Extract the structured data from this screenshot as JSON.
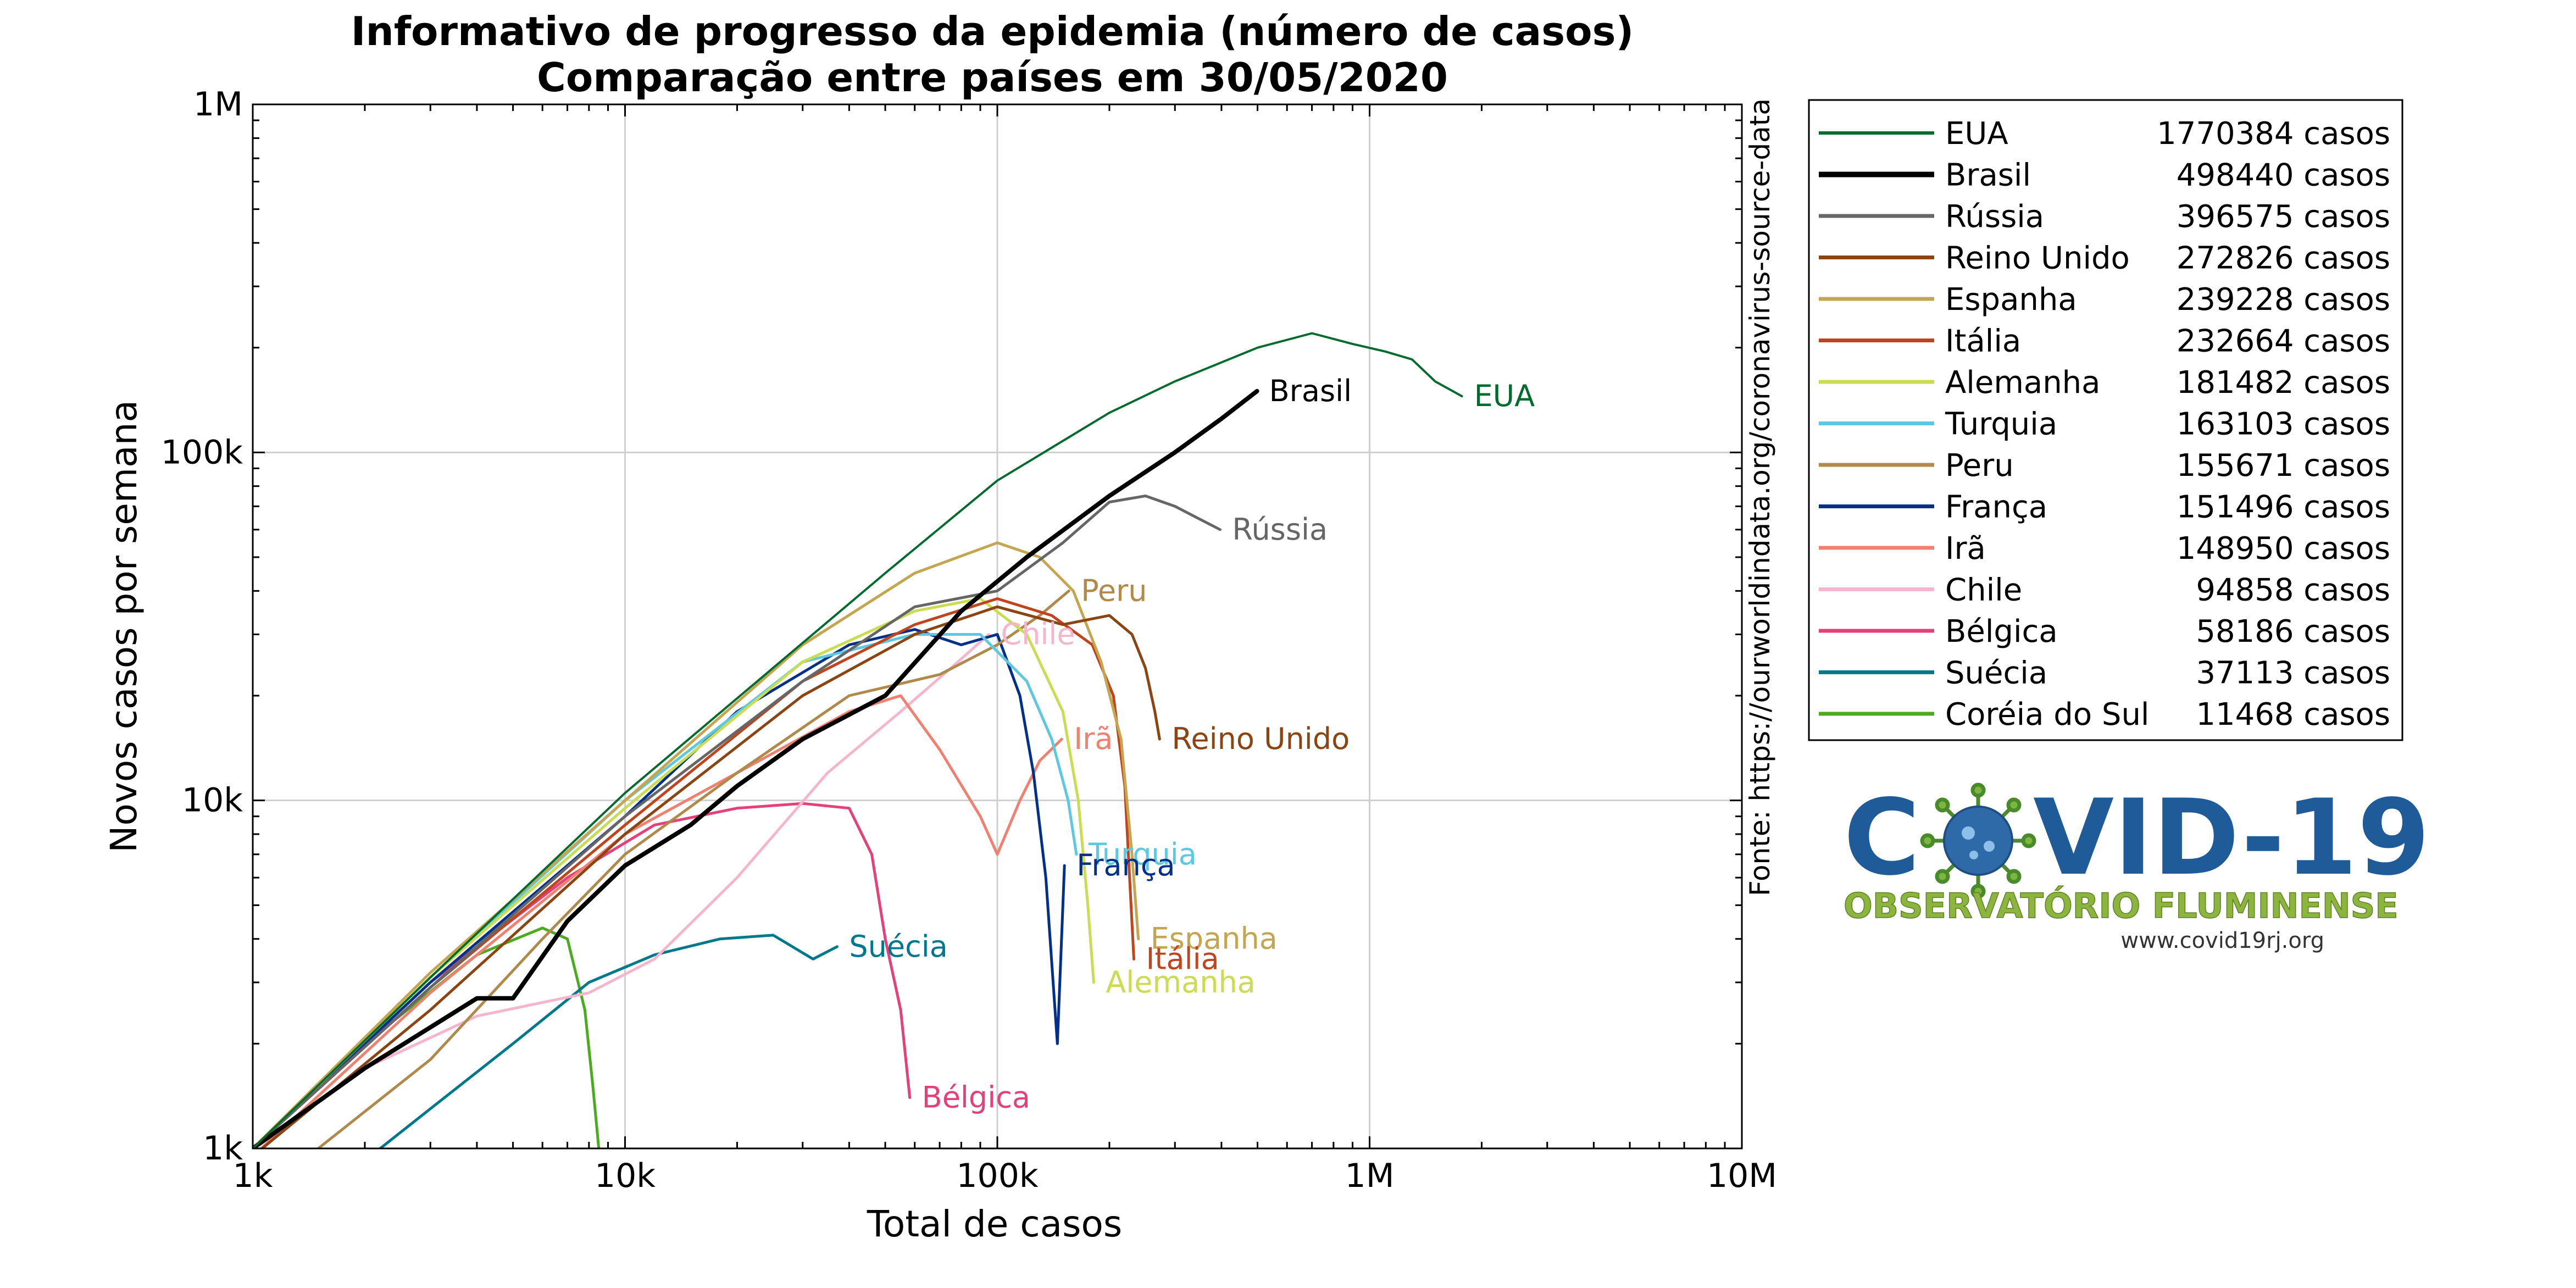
{
  "chart_data": {
    "type": "line",
    "title": "Informativo de progresso da epidemia (número de casos)",
    "subtitle": "Comparação entre países em 30/05/2020",
    "xlabel": "Total de casos",
    "ylabel": "Novos casos por semana",
    "source_note": "Fonte: https://ourworldindata.org/coronavirus-source-data",
    "x_scale": "log",
    "y_scale": "log",
    "xlim": [
      1000,
      10000000
    ],
    "ylim": [
      1000,
      1000000
    ],
    "x_ticks": [
      {
        "value": 1000,
        "label": "1k"
      },
      {
        "value": 10000,
        "label": "10k"
      },
      {
        "value": 100000,
        "label": "100k"
      },
      {
        "value": 1000000,
        "label": "1M"
      },
      {
        "value": 10000000,
        "label": "10M"
      }
    ],
    "y_ticks": [
      {
        "value": 1000,
        "label": "1k"
      },
      {
        "value": 10000,
        "label": "10k"
      },
      {
        "value": 100000,
        "label": "100k"
      },
      {
        "value": 1000000,
        "label": "1M"
      }
    ],
    "grid": true,
    "legend_position": "right",
    "series": [
      {
        "name": "EUA",
        "total": "1770384 casos",
        "color": "#006b2d",
        "width": 4,
        "end_label": "EUA",
        "points": [
          [
            1000,
            1000
          ],
          [
            3000,
            3100
          ],
          [
            10000,
            10500
          ],
          [
            50000,
            45000
          ],
          [
            100000,
            83000
          ],
          [
            200000,
            130000
          ],
          [
            300000,
            160000
          ],
          [
            500000,
            200000
          ],
          [
            700000,
            220000
          ],
          [
            900000,
            205000
          ],
          [
            1100000,
            195000
          ],
          [
            1300000,
            185000
          ],
          [
            1500000,
            160000
          ],
          [
            1770384,
            145000
          ]
        ]
      },
      {
        "name": "Brasil",
        "total": "498440 casos",
        "color": "#000000",
        "width": 8,
        "end_label": "Brasil",
        "points": [
          [
            1000,
            1000
          ],
          [
            2000,
            1700
          ],
          [
            4000,
            2700
          ],
          [
            5000,
            2700
          ],
          [
            7000,
            4500
          ],
          [
            10000,
            6500
          ],
          [
            15000,
            8500
          ],
          [
            20000,
            11000
          ],
          [
            30000,
            15000
          ],
          [
            50000,
            20000
          ],
          [
            80000,
            35000
          ],
          [
            120000,
            50000
          ],
          [
            200000,
            75000
          ],
          [
            300000,
            100000
          ],
          [
            400000,
            125000
          ],
          [
            498440,
            150000
          ]
        ]
      },
      {
        "name": "Rússia",
        "total": "396575 casos",
        "color": "#666666",
        "width": 5,
        "end_label": "Rússia",
        "points": [
          [
            1000,
            1000
          ],
          [
            3000,
            2900
          ],
          [
            10000,
            9000
          ],
          [
            30000,
            22000
          ],
          [
            60000,
            36000
          ],
          [
            100000,
            40000
          ],
          [
            150000,
            55000
          ],
          [
            200000,
            72000
          ],
          [
            250000,
            75000
          ],
          [
            300000,
            70000
          ],
          [
            396575,
            60000
          ]
        ]
      },
      {
        "name": "Reino Unido",
        "total": "272826 casos",
        "color": "#8b4513",
        "width": 5,
        "end_label": "Reino Unido",
        "points": [
          [
            1000,
            950
          ],
          [
            3000,
            2500
          ],
          [
            10000,
            8000
          ],
          [
            30000,
            20000
          ],
          [
            60000,
            30000
          ],
          [
            100000,
            36000
          ],
          [
            150000,
            32000
          ],
          [
            200000,
            34000
          ],
          [
            230000,
            30000
          ],
          [
            250000,
            24000
          ],
          [
            265000,
            18000
          ],
          [
            272826,
            15000
          ]
        ]
      },
      {
        "name": "Espanha",
        "total": "239228 casos",
        "color": "#c4a550",
        "width": 5,
        "end_label": "Espanha",
        "points": [
          [
            1000,
            1000
          ],
          [
            3000,
            3200
          ],
          [
            10000,
            10000
          ],
          [
            30000,
            28000
          ],
          [
            60000,
            45000
          ],
          [
            100000,
            55000
          ],
          [
            130000,
            50000
          ],
          [
            160000,
            40000
          ],
          [
            190000,
            25000
          ],
          [
            215000,
            15000
          ],
          [
            230000,
            7000
          ],
          [
            239228,
            4000
          ]
        ]
      },
      {
        "name": "Itália",
        "total": "232664 casos",
        "color": "#c0441d",
        "width": 5,
        "end_label": "Itália",
        "points": [
          [
            1000,
            1000
          ],
          [
            3000,
            2900
          ],
          [
            10000,
            8500
          ],
          [
            30000,
            22000
          ],
          [
            60000,
            32000
          ],
          [
            100000,
            38000
          ],
          [
            140000,
            34000
          ],
          [
            180000,
            28000
          ],
          [
            205000,
            20000
          ],
          [
            220000,
            11000
          ],
          [
            232664,
            3500
          ]
        ]
      },
      {
        "name": "Alemanha",
        "total": "181482 casos",
        "color": "#c9dc52",
        "width": 5,
        "end_label": "Alemanha",
        "points": [
          [
            1000,
            1000
          ],
          [
            3000,
            3100
          ],
          [
            10000,
            9500
          ],
          [
            30000,
            25000
          ],
          [
            60000,
            35000
          ],
          [
            90000,
            38000
          ],
          [
            120000,
            30000
          ],
          [
            150000,
            18000
          ],
          [
            165000,
            10000
          ],
          [
            175000,
            5000
          ],
          [
            181482,
            3000
          ]
        ]
      },
      {
        "name": "Turquia",
        "total": "163103 casos",
        "color": "#5dc8e0",
        "width": 5,
        "end_label": "Turquia",
        "points": [
          [
            1000,
            1000
          ],
          [
            3000,
            3100
          ],
          [
            10000,
            10000
          ],
          [
            30000,
            25000
          ],
          [
            60000,
            30000
          ],
          [
            90000,
            30000
          ],
          [
            120000,
            22000
          ],
          [
            140000,
            15000
          ],
          [
            155000,
            10000
          ],
          [
            163103,
            7000
          ]
        ]
      },
      {
        "name": "Peru",
        "total": "155671 casos",
        "color": "#b08a4a",
        "width": 5,
        "end_label": "Peru",
        "points": [
          [
            1500,
            1000
          ],
          [
            3000,
            1800
          ],
          [
            6000,
            4000
          ],
          [
            10000,
            7000
          ],
          [
            20000,
            12000
          ],
          [
            40000,
            20000
          ],
          [
            70000,
            23000
          ],
          [
            100000,
            28000
          ],
          [
            130000,
            34000
          ],
          [
            155671,
            40000
          ]
        ]
      },
      {
        "name": "França",
        "total": "151496 casos",
        "color": "#00308a",
        "width": 5,
        "end_label": "França",
        "points": [
          [
            1000,
            1000
          ],
          [
            3000,
            3000
          ],
          [
            10000,
            9000
          ],
          [
            20000,
            18000
          ],
          [
            40000,
            28000
          ],
          [
            60000,
            31000
          ],
          [
            80000,
            28000
          ],
          [
            100000,
            30000
          ],
          [
            115000,
            20000
          ],
          [
            125000,
            12000
          ],
          [
            135000,
            6000
          ],
          [
            145000,
            2000
          ],
          [
            151496,
            6500
          ]
        ]
      },
      {
        "name": "Irã",
        "total": "148950 casos",
        "color": "#f08070",
        "width": 5,
        "end_label": "Irã",
        "points": [
          [
            1000,
            950
          ],
          [
            3000,
            2800
          ],
          [
            10000,
            8000
          ],
          [
            20000,
            12000
          ],
          [
            40000,
            18000
          ],
          [
            55000,
            20000
          ],
          [
            70000,
            14000
          ],
          [
            90000,
            9000
          ],
          [
            100000,
            7000
          ],
          [
            115000,
            10000
          ],
          [
            130000,
            13000
          ],
          [
            148950,
            15000
          ]
        ]
      },
      {
        "name": "Chile",
        "total": "94858 casos",
        "color": "#f5b5cc",
        "width": 5,
        "end_label": "Chile",
        "points": [
          [
            1000,
            1000
          ],
          [
            2000,
            1700
          ],
          [
            4000,
            2400
          ],
          [
            8000,
            2800
          ],
          [
            12000,
            3500
          ],
          [
            20000,
            6000
          ],
          [
            35000,
            12000
          ],
          [
            55000,
            18000
          ],
          [
            75000,
            24000
          ],
          [
            94858,
            30000
          ]
        ]
      },
      {
        "name": "Bélgica",
        "total": "58186 casos",
        "color": "#e5407a",
        "width": 5,
        "end_label": "Bélgica",
        "points": [
          [
            1000,
            1000
          ],
          [
            3000,
            3000
          ],
          [
            7000,
            6000
          ],
          [
            12000,
            8500
          ],
          [
            20000,
            9500
          ],
          [
            30000,
            9800
          ],
          [
            40000,
            9500
          ],
          [
            46000,
            7000
          ],
          [
            50000,
            4000
          ],
          [
            55000,
            2500
          ],
          [
            58186,
            1400
          ]
        ]
      },
      {
        "name": "Suécia",
        "total": "37113 casos",
        "color": "#00788c",
        "width": 5,
        "end_label": "Suécia",
        "points": [
          [
            2200,
            1000
          ],
          [
            3000,
            1300
          ],
          [
            5000,
            2000
          ],
          [
            8000,
            3000
          ],
          [
            12000,
            3600
          ],
          [
            18000,
            4000
          ],
          [
            25000,
            4100
          ],
          [
            32000,
            3500
          ],
          [
            37113,
            3800
          ]
        ]
      },
      {
        "name": "Coréia do Sul",
        "total": "11468 casos",
        "color": "#4aab1f",
        "width": 5,
        "end_label": "",
        "points": [
          [
            1000,
            1000
          ],
          [
            2000,
            2000
          ],
          [
            4000,
            3600
          ],
          [
            6000,
            4300
          ],
          [
            7000,
            4000
          ],
          [
            7800,
            2500
          ],
          [
            8200,
            1500
          ],
          [
            8500,
            1000
          ]
        ]
      }
    ]
  },
  "logo": {
    "text_left": "C",
    "text_right": "VID-19",
    "subtitle": "OBSERVATÓRIO FLUMINENSE",
    "url": "www.covid19rj.org",
    "icon": "coronavirus-icon"
  }
}
